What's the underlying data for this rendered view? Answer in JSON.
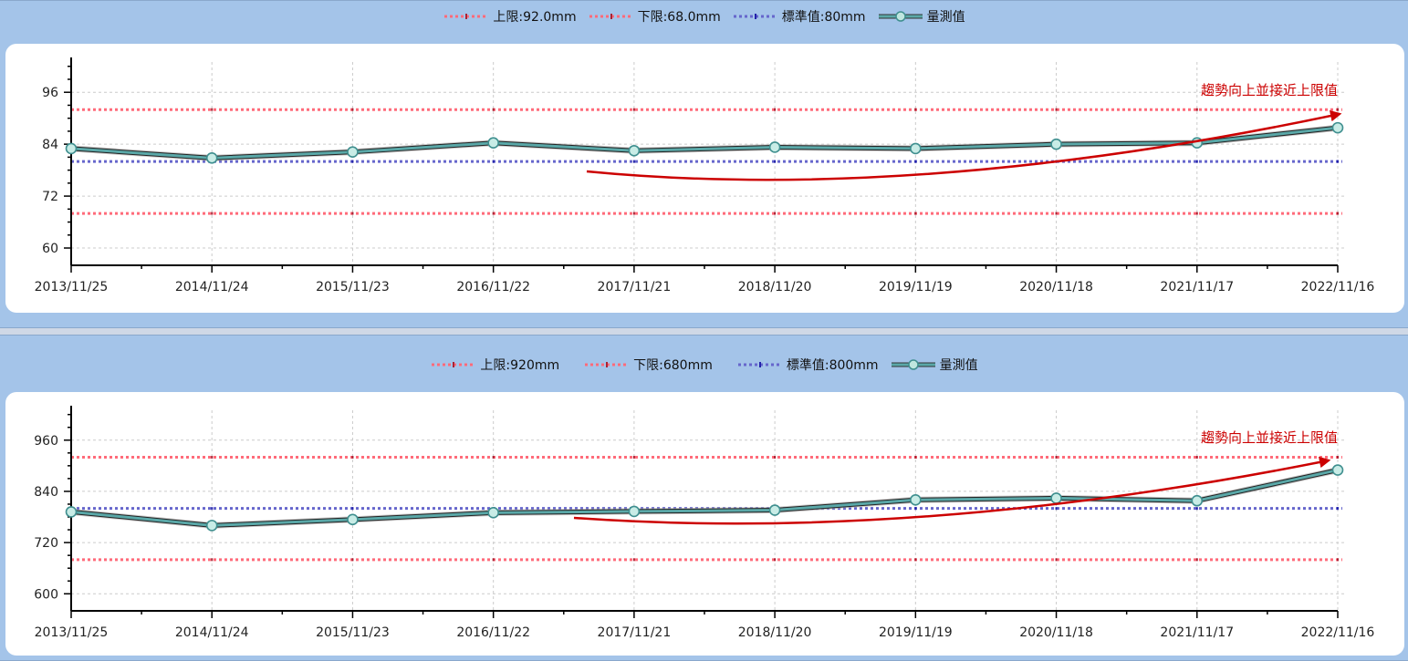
{
  "colors": {
    "upper_limit": "#ff6b7a",
    "lower_limit": "#ff6b7a",
    "standard": "#6666cc",
    "measured": "#5aa8a8",
    "annotation": "#cc0000",
    "panel_bg": "#a4c4e9"
  },
  "chart_data": [
    {
      "type": "line",
      "legend": {
        "upper": "上限:92.0mm",
        "lower": "下限:68.0mm",
        "standard": "標準值:80mm",
        "measured": "量測值"
      },
      "x": [
        "2013/11/25",
        "2014/11/24",
        "2015/11/23",
        "2016/11/22",
        "2017/11/21",
        "2018/11/20",
        "2019/11/19",
        "2020/11/18",
        "2021/11/17",
        "2022/11/16"
      ],
      "y_ticks": [
        60,
        72,
        84,
        96
      ],
      "y_tick_labels": [
        "60",
        "72",
        "84",
        "96"
      ],
      "ylim": [
        56,
        103
      ],
      "grid": true,
      "reference_lines": {
        "upper": 92,
        "lower": 68,
        "standard": 80
      },
      "series": [
        {
          "name": "量測值",
          "values": [
            83,
            80.8,
            82.2,
            84.3,
            82.5,
            83.3,
            83,
            84,
            84.3,
            87.8
          ]
        }
      ],
      "annotation": "趨勢向上並接近上限值"
    },
    {
      "type": "line",
      "legend": {
        "upper": "上限:920mm",
        "lower": "下限:680mm",
        "standard": "標準值:800mm",
        "measured": "量測值"
      },
      "x": [
        "2013/11/25",
        "2014/11/24",
        "2015/11/23",
        "2016/11/22",
        "2017/11/21",
        "2018/11/20",
        "2019/11/19",
        "2020/11/18",
        "2021/11/17",
        "2022/11/16"
      ],
      "y_ticks": [
        600,
        720,
        840,
        960
      ],
      "y_tick_labels": [
        "600",
        "720",
        "840",
        "960"
      ],
      "ylim": [
        560,
        1030
      ],
      "grid": true,
      "reference_lines": {
        "upper": 920,
        "lower": 680,
        "standard": 800
      },
      "series": [
        {
          "name": "量測值",
          "values": [
            792,
            760,
            774,
            790,
            793,
            796,
            820,
            824,
            818,
            890
          ]
        }
      ],
      "annotation": "趨勢向上並接近上限值"
    }
  ]
}
